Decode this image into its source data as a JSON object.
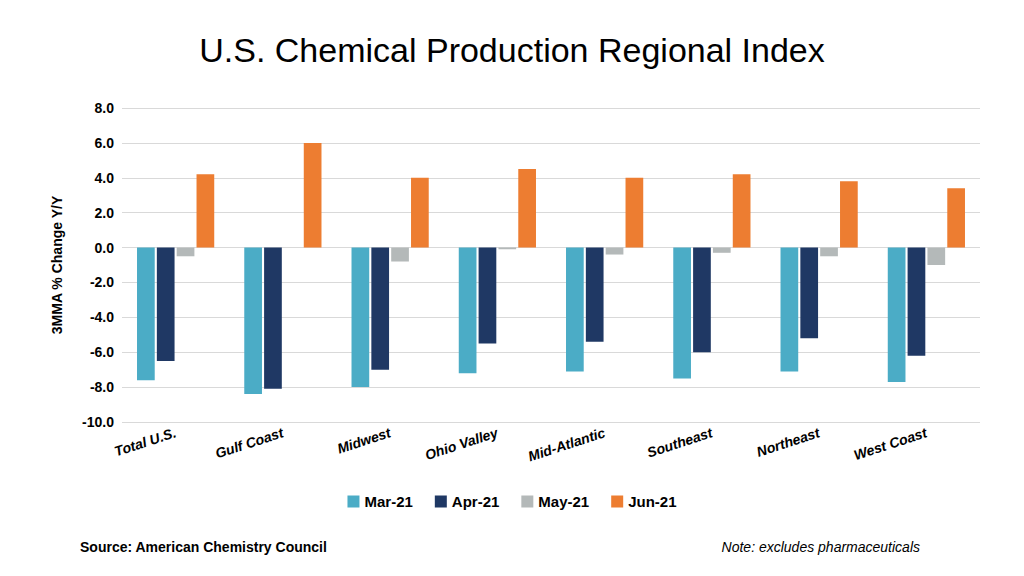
{
  "chart_data": {
    "type": "bar",
    "title": "U.S. Chemical Production Regional Index",
    "y_label": "3MMA % Change Y/Y",
    "source": "Source: American Chemistry Council",
    "note": "Note: excludes pharmaceuticals",
    "categories": [
      "Total U.S.",
      "Gulf Coast",
      "Midwest",
      "Ohio Valley",
      "Mid-Atlantic",
      "Southeast",
      "Northeast",
      "West Coast"
    ],
    "series": [
      {
        "name": "Mar-21",
        "color": "#4bacc6",
        "values": [
          -7.6,
          -8.4,
          -8.0,
          -7.2,
          -7.1,
          -7.5,
          -7.1,
          -7.7
        ]
      },
      {
        "name": "Apr-21",
        "color": "#1f3864",
        "values": [
          -6.5,
          -8.1,
          -7.0,
          -5.5,
          -5.4,
          -6.0,
          -5.2,
          -6.2
        ]
      },
      {
        "name": "May-21",
        "color": "#b4b9b9",
        "values": [
          -0.5,
          0.0,
          -0.8,
          -0.1,
          -0.4,
          -0.3,
          -0.5,
          -1.0
        ]
      },
      {
        "name": "Jun-21",
        "color": "#ed7d31",
        "values": [
          4.2,
          6.0,
          4.0,
          4.5,
          4.0,
          4.2,
          3.8,
          3.4
        ]
      }
    ],
    "ylim": [
      -10,
      8
    ],
    "yticks": [
      {
        "value": -10,
        "label": "-10.0"
      },
      {
        "value": -8,
        "label": "-8.0"
      },
      {
        "value": -6,
        "label": "-6.0"
      },
      {
        "value": -4,
        "label": "-4.0"
      },
      {
        "value": -2,
        "label": "-2.0"
      },
      {
        "value": 0,
        "label": "0.0"
      },
      {
        "value": 2,
        "label": "2.0"
      },
      {
        "value": 4,
        "label": "4.0"
      },
      {
        "value": 6,
        "label": "6.0"
      },
      {
        "value": 8,
        "label": "8.0"
      }
    ],
    "grid": true,
    "legend": "bottom"
  }
}
